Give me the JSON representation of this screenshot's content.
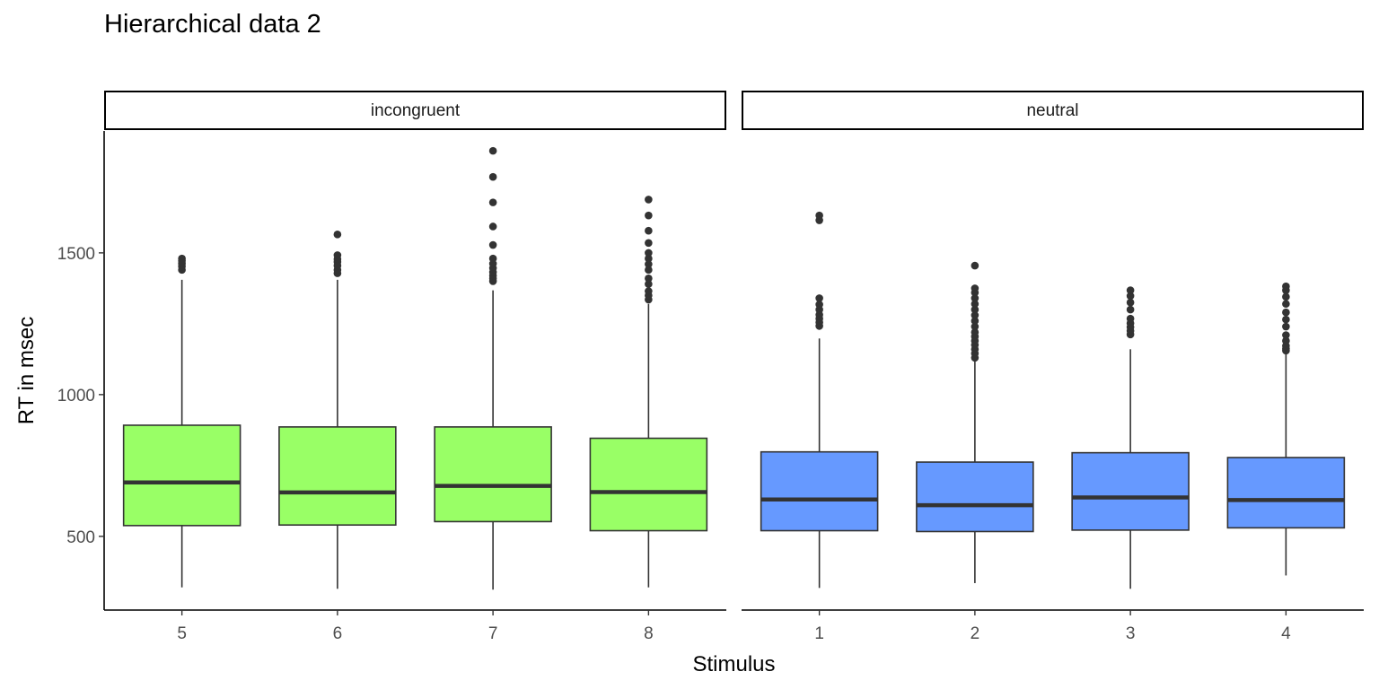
{
  "chart_data": {
    "type": "boxplot",
    "title": "Hierarchical data 2",
    "xlabel": "Stimulus",
    "ylabel": "RT in msec",
    "ylim": [
      240,
      1930
    ],
    "y_ticks": [
      500,
      1000,
      1500
    ],
    "grid": false,
    "facets": [
      {
        "label": "incongruent",
        "fill": "#99FF66",
        "categories": [
          "5",
          "6",
          "7",
          "8"
        ],
        "boxes": [
          {
            "min": 320,
            "q1": 538,
            "median": 690,
            "q3": 892,
            "max": 1405,
            "outliers": [
              1440,
              1452,
              1462,
              1472,
              1480
            ]
          },
          {
            "min": 315,
            "q1": 540,
            "median": 655,
            "q3": 886,
            "max": 1405,
            "outliers": [
              1428,
              1440,
              1455,
              1468,
              1478,
              1492,
              1565
            ]
          },
          {
            "min": 312,
            "q1": 552,
            "median": 678,
            "q3": 886,
            "max": 1368,
            "outliers": [
              1400,
              1410,
              1420,
              1432,
              1446,
              1462,
              1480,
              1528,
              1593,
              1678,
              1768,
              1860
            ]
          },
          {
            "min": 320,
            "q1": 520,
            "median": 656,
            "q3": 846,
            "max": 1320,
            "outliers": [
              1335,
              1350,
              1365,
              1390,
              1410,
              1440,
              1460,
              1480,
              1500,
              1535,
              1578,
              1632,
              1688
            ]
          }
        ]
      },
      {
        "label": "neutral",
        "fill": "#6699FF",
        "categories": [
          "1",
          "2",
          "3",
          "4"
        ],
        "boxes": [
          {
            "min": 318,
            "q1": 520,
            "median": 630,
            "q3": 798,
            "max": 1198,
            "outliers": [
              1242,
              1255,
              1268,
              1282,
              1300,
              1318,
              1340,
              1615,
              1632
            ]
          },
          {
            "min": 335,
            "q1": 517,
            "median": 610,
            "q3": 762,
            "max": 1120,
            "outliers": [
              1130,
              1145,
              1160,
              1175,
              1190,
              1205,
              1220,
              1240,
              1260,
              1280,
              1300,
              1320,
              1340,
              1360,
              1375,
              1455
            ]
          },
          {
            "min": 315,
            "q1": 522,
            "median": 637,
            "q3": 795,
            "max": 1160,
            "outliers": [
              1212,
              1225,
              1238,
              1252,
              1268,
              1300,
              1325,
              1348,
              1368
            ]
          },
          {
            "min": 362,
            "q1": 530,
            "median": 628,
            "q3": 778,
            "max": 1148,
            "outliers": [
              1155,
              1162,
              1172,
              1190,
              1210,
              1240,
              1265,
              1290,
              1320,
              1345,
              1368,
              1382
            ]
          }
        ]
      }
    ]
  }
}
